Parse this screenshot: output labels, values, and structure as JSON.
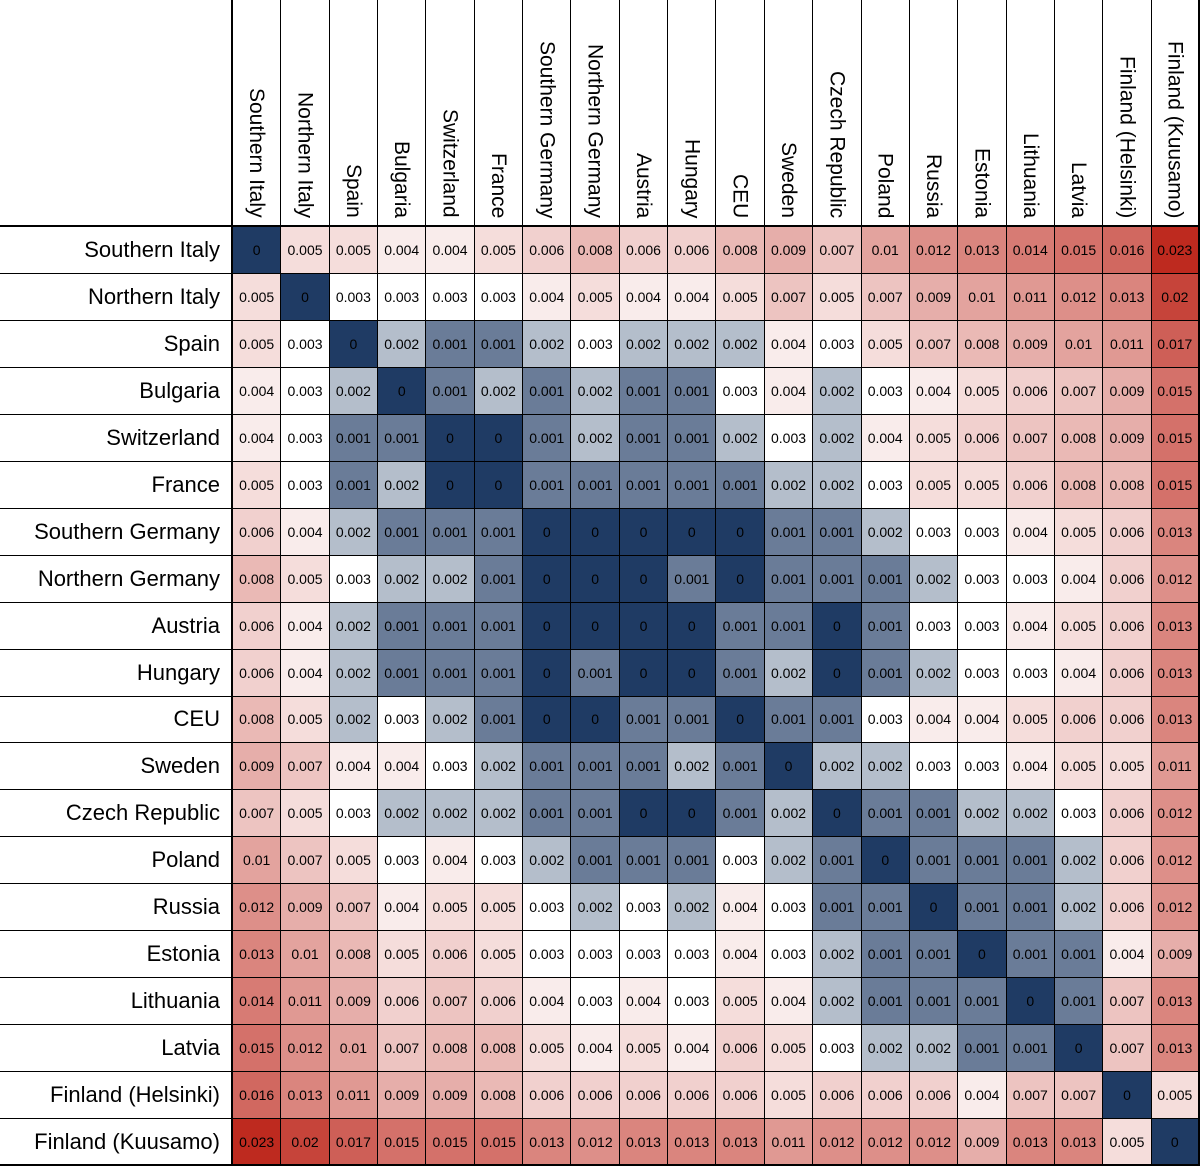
{
  "chart_data": {
    "type": "heatmap",
    "title": "",
    "grid": true,
    "legend": "none",
    "categories": [
      "Southern Italy",
      "Northern Italy",
      "Spain",
      "Bulgaria",
      "Switzerland",
      "France",
      "Southern Germany",
      "Northern Germany",
      "Austria",
      "Hungary",
      "CEU",
      "Sweden",
      "Czech Republic",
      "Poland",
      "Russia",
      "Estonia",
      "Lithuania",
      "Latvia",
      "Finland (Helsinki)",
      "Finland (Kuusamo)"
    ],
    "matrix": [
      [
        0,
        0.005,
        0.005,
        0.004,
        0.004,
        0.005,
        0.006,
        0.008,
        0.006,
        0.006,
        0.008,
        0.009,
        0.007,
        0.01,
        0.012,
        0.013,
        0.014,
        0.015,
        0.016,
        0.023
      ],
      [
        0.005,
        0,
        0.003,
        0.003,
        0.003,
        0.003,
        0.004,
        0.005,
        0.004,
        0.004,
        0.005,
        0.007,
        0.005,
        0.007,
        0.009,
        0.01,
        0.011,
        0.012,
        0.013,
        0.02
      ],
      [
        0.005,
        0.003,
        0,
        0.002,
        0.001,
        0.001,
        0.002,
        0.003,
        0.002,
        0.002,
        0.002,
        0.004,
        0.003,
        0.005,
        0.007,
        0.008,
        0.009,
        0.01,
        0.011,
        0.017
      ],
      [
        0.004,
        0.003,
        0.002,
        0,
        0.001,
        0.002,
        0.001,
        0.002,
        0.001,
        0.001,
        0.003,
        0.004,
        0.002,
        0.003,
        0.004,
        0.005,
        0.006,
        0.007,
        0.009,
        0.015
      ],
      [
        0.004,
        0.003,
        0.001,
        0.001,
        0,
        0,
        0.001,
        0.002,
        0.001,
        0.001,
        0.002,
        0.003,
        0.002,
        0.004,
        0.005,
        0.006,
        0.007,
        0.008,
        0.009,
        0.015
      ],
      [
        0.005,
        0.003,
        0.001,
        0.002,
        0,
        0,
        0.001,
        0.001,
        0.001,
        0.001,
        0.001,
        0.002,
        0.002,
        0.003,
        0.005,
        0.005,
        0.006,
        0.008,
        0.008,
        0.015
      ],
      [
        0.006,
        0.004,
        0.002,
        0.001,
        0.001,
        0.001,
        0,
        0,
        0,
        0,
        0,
        0.001,
        0.001,
        0.002,
        0.003,
        0.003,
        0.004,
        0.005,
        0.006,
        0.013
      ],
      [
        0.008,
        0.005,
        0.003,
        0.002,
        0.002,
        0.001,
        0,
        0,
        0,
        0.001,
        0,
        0.001,
        0.001,
        0.001,
        0.002,
        0.003,
        0.003,
        0.004,
        0.006,
        0.012
      ],
      [
        0.006,
        0.004,
        0.002,
        0.001,
        0.001,
        0.001,
        0,
        0,
        0,
        0,
        0.001,
        0.001,
        0,
        0.001,
        0.003,
        0.003,
        0.004,
        0.005,
        0.006,
        0.013
      ],
      [
        0.006,
        0.004,
        0.002,
        0.001,
        0.001,
        0.001,
        0,
        0.001,
        0,
        0,
        0.001,
        0.002,
        0,
        0.001,
        0.002,
        0.003,
        0.003,
        0.004,
        0.006,
        0.013
      ],
      [
        0.008,
        0.005,
        0.002,
        0.003,
        0.002,
        0.001,
        0,
        0,
        0.001,
        0.001,
        0,
        0.001,
        0.001,
        0.003,
        0.004,
        0.004,
        0.005,
        0.006,
        0.006,
        0.013
      ],
      [
        0.009,
        0.007,
        0.004,
        0.004,
        0.003,
        0.002,
        0.001,
        0.001,
        0.001,
        0.002,
        0.001,
        0,
        0.002,
        0.002,
        0.003,
        0.003,
        0.004,
        0.005,
        0.005,
        0.011
      ],
      [
        0.007,
        0.005,
        0.003,
        0.002,
        0.002,
        0.002,
        0.001,
        0.001,
        0,
        0,
        0.001,
        0.002,
        0,
        0.001,
        0.001,
        0.002,
        0.002,
        0.003,
        0.006,
        0.012
      ],
      [
        0.01,
        0.007,
        0.005,
        0.003,
        0.004,
        0.003,
        0.002,
        0.001,
        0.001,
        0.001,
        0.003,
        0.002,
        0.001,
        0,
        0.001,
        0.001,
        0.001,
        0.002,
        0.006,
        0.012
      ],
      [
        0.012,
        0.009,
        0.007,
        0.004,
        0.005,
        0.005,
        0.003,
        0.002,
        0.003,
        0.002,
        0.004,
        0.003,
        0.001,
        0.001,
        0,
        0.001,
        0.001,
        0.002,
        0.006,
        0.012
      ],
      [
        0.013,
        0.01,
        0.008,
        0.005,
        0.006,
        0.005,
        0.003,
        0.003,
        0.003,
        0.003,
        0.004,
        0.003,
        0.002,
        0.001,
        0.001,
        0,
        0.001,
        0.001,
        0.004,
        0.009
      ],
      [
        0.014,
        0.011,
        0.009,
        0.006,
        0.007,
        0.006,
        0.004,
        0.003,
        0.004,
        0.003,
        0.005,
        0.004,
        0.002,
        0.001,
        0.001,
        0.001,
        0,
        0.001,
        0.007,
        0.013
      ],
      [
        0.015,
        0.012,
        0.01,
        0.007,
        0.008,
        0.008,
        0.005,
        0.004,
        0.005,
        0.004,
        0.006,
        0.005,
        0.003,
        0.002,
        0.002,
        0.001,
        0.001,
        0,
        0.007,
        0.013
      ],
      [
        0.016,
        0.013,
        0.011,
        0.009,
        0.009,
        0.008,
        0.006,
        0.006,
        0.006,
        0.006,
        0.006,
        0.005,
        0.006,
        0.006,
        0.006,
        0.004,
        0.007,
        0.007,
        0,
        0.005
      ],
      [
        0.023,
        0.02,
        0.017,
        0.015,
        0.015,
        0.015,
        0.013,
        0.012,
        0.013,
        0.013,
        0.013,
        0.011,
        0.012,
        0.012,
        0.012,
        0.009,
        0.013,
        0.013,
        0.005,
        0
      ]
    ],
    "color_scale": {
      "low_color": "#1F3B64",
      "mid_color": "#FFFFFF",
      "high_color": "#BE2A1F",
      "midpoint": 0.003,
      "min": 0,
      "max": 0.023,
      "high_exponent": 0.8,
      "gridline_color": "#000000"
    }
  }
}
